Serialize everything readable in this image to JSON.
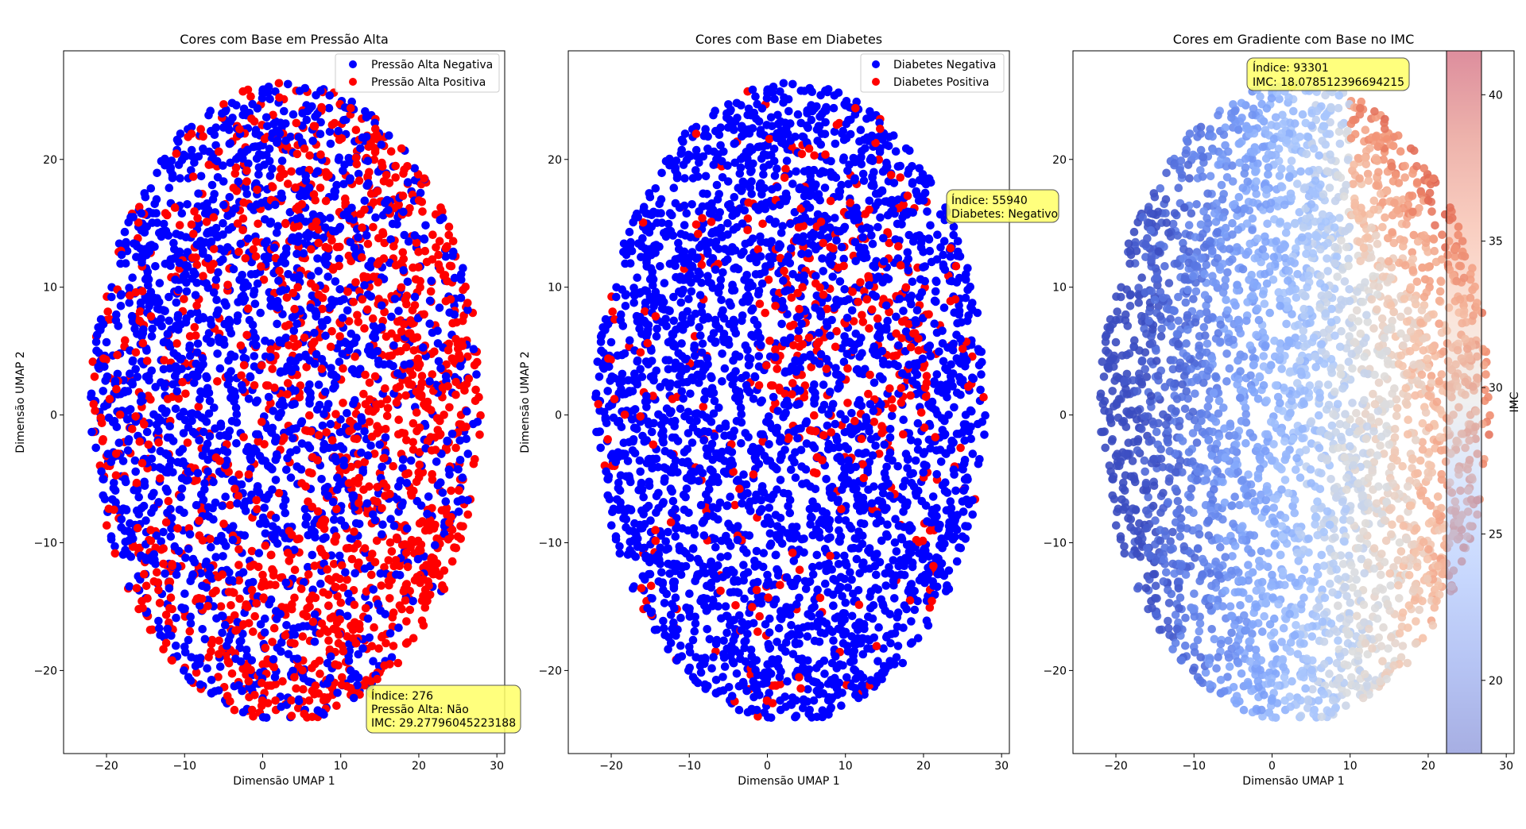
{
  "chart_data": [
    {
      "type": "scatter",
      "title": "Cores com Base em Pressão Alta",
      "xlabel": "Dimensão UMAP 1",
      "ylabel": "Dimensão UMAP 2",
      "xlim": [
        -25.5,
        31
      ],
      "ylim": [
        -26.5,
        28.5
      ],
      "xticks": [
        -20,
        -10,
        0,
        10,
        20,
        30
      ],
      "yticks": [
        -20,
        -10,
        0,
        10,
        20
      ],
      "legend_position": "top-right",
      "series": [
        {
          "name": "Pressão Alta Negativa",
          "color": "#0000ff",
          "region": "left-dominant"
        },
        {
          "name": "Pressão Alta Positiva",
          "color": "#ff0000",
          "region": "right-and-bottom-dominant"
        }
      ],
      "cloud": {
        "center": [
          3,
          1
        ],
        "radius_x": 25,
        "radius_y": 25
      },
      "annotation": {
        "lines": [
          "Índice: 276",
          "Pressão Alta: Não",
          "IMC: 29.27796045223188"
        ],
        "point": [
          14,
          -21.8
        ]
      }
    },
    {
      "type": "scatter",
      "title": "Cores com Base em Diabetes",
      "xlabel": "Dimensão UMAP 1",
      "ylabel": "Dimensão UMAP 2",
      "xlim": [
        -25.5,
        31
      ],
      "ylim": [
        -26.5,
        28.5
      ],
      "xticks": [
        -20,
        -10,
        0,
        10,
        20,
        30
      ],
      "yticks": [
        -20,
        -10,
        0,
        10,
        20
      ],
      "legend_position": "top-right",
      "series": [
        {
          "name": "Diabetes Negativa",
          "color": "#0000ff",
          "region": "majority"
        },
        {
          "name": "Diabetes Positiva",
          "color": "#ff0000",
          "region": "center-right-cluster"
        }
      ],
      "cloud": {
        "center": [
          3,
          1
        ],
        "radius_x": 25,
        "radius_y": 25
      },
      "annotation": {
        "lines": [
          "Índice: 55940",
          "Diabetes: Negativo"
        ],
        "point": [
          23.5,
          15.3
        ]
      }
    },
    {
      "type": "scatter",
      "title": "Cores em Gradiente com Base no IMC",
      "xlabel": "Dimensão UMAP 1",
      "ylabel": "",
      "xlim": [
        -25.5,
        31
      ],
      "ylim": [
        -26.5,
        28.5
      ],
      "xticks": [
        -20,
        -10,
        0,
        10,
        20,
        30
      ],
      "yticks": [
        -20,
        -10,
        0,
        10,
        20
      ],
      "colormap": "coolwarm",
      "colorbar": {
        "label": "IMC",
        "range": [
          17.5,
          41.5
        ],
        "ticks": [
          20,
          25,
          30,
          35,
          40
        ]
      },
      "cloud": {
        "center": [
          3,
          1
        ],
        "radius_x": 25,
        "radius_y": 25
      },
      "annotation": {
        "lines": [
          "Índice: 93301",
          "IMC: 18.078512396694215"
        ],
        "point": [
          2.5,
          25.7
        ]
      }
    }
  ]
}
